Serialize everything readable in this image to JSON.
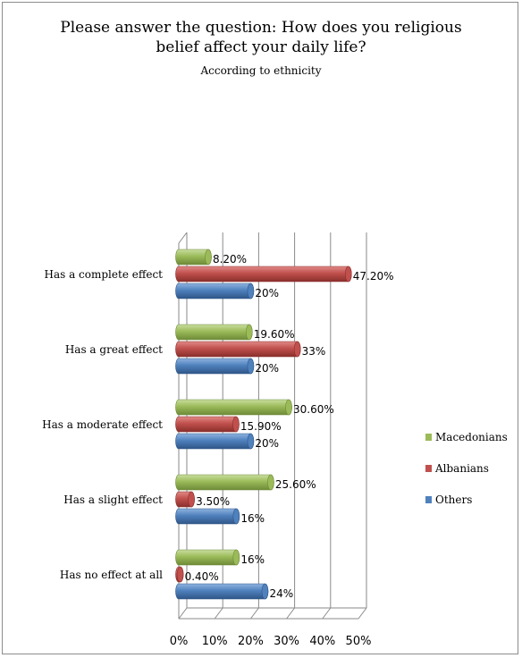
{
  "chart_data": {
    "type": "bar",
    "orientation": "horizontal",
    "title": "Please answer the question: How does you religious belief affect your daily life?",
    "title_lines": [
      "Please answer the question: How does you religious",
      "belief affect your daily life?"
    ],
    "subtitle": "According to ethnicity",
    "categories": [
      "Has a complete effect",
      "Has a great effect",
      "Has a moderate effect",
      "Has a slight effect",
      "Has no effect at all"
    ],
    "series": [
      {
        "name": "Macedonians",
        "color": "#9bbb59",
        "values": [
          8.2,
          19.6,
          30.6,
          25.6,
          16
        ],
        "labels": [
          "8.20%",
          "19.60%",
          "30.60%",
          "25.60%",
          "16%"
        ]
      },
      {
        "name": "Albanians",
        "color": "#c0504d",
        "values": [
          47.2,
          33,
          15.9,
          3.5,
          0.4
        ],
        "labels": [
          "47.20%",
          "33%",
          "15.90%",
          "3.50%",
          "0.40%"
        ]
      },
      {
        "name": "Others",
        "color": "#4f81bd",
        "values": [
          20,
          20,
          20,
          16,
          24
        ],
        "labels": [
          "20%",
          "20%",
          "20%",
          "16%",
          "24%"
        ]
      }
    ],
    "xlim": [
      0,
      50
    ],
    "xticks": [
      "0%",
      "10%",
      "20%",
      "30%",
      "40%",
      "50%"
    ],
    "grid": true,
    "legend_position": "right"
  }
}
